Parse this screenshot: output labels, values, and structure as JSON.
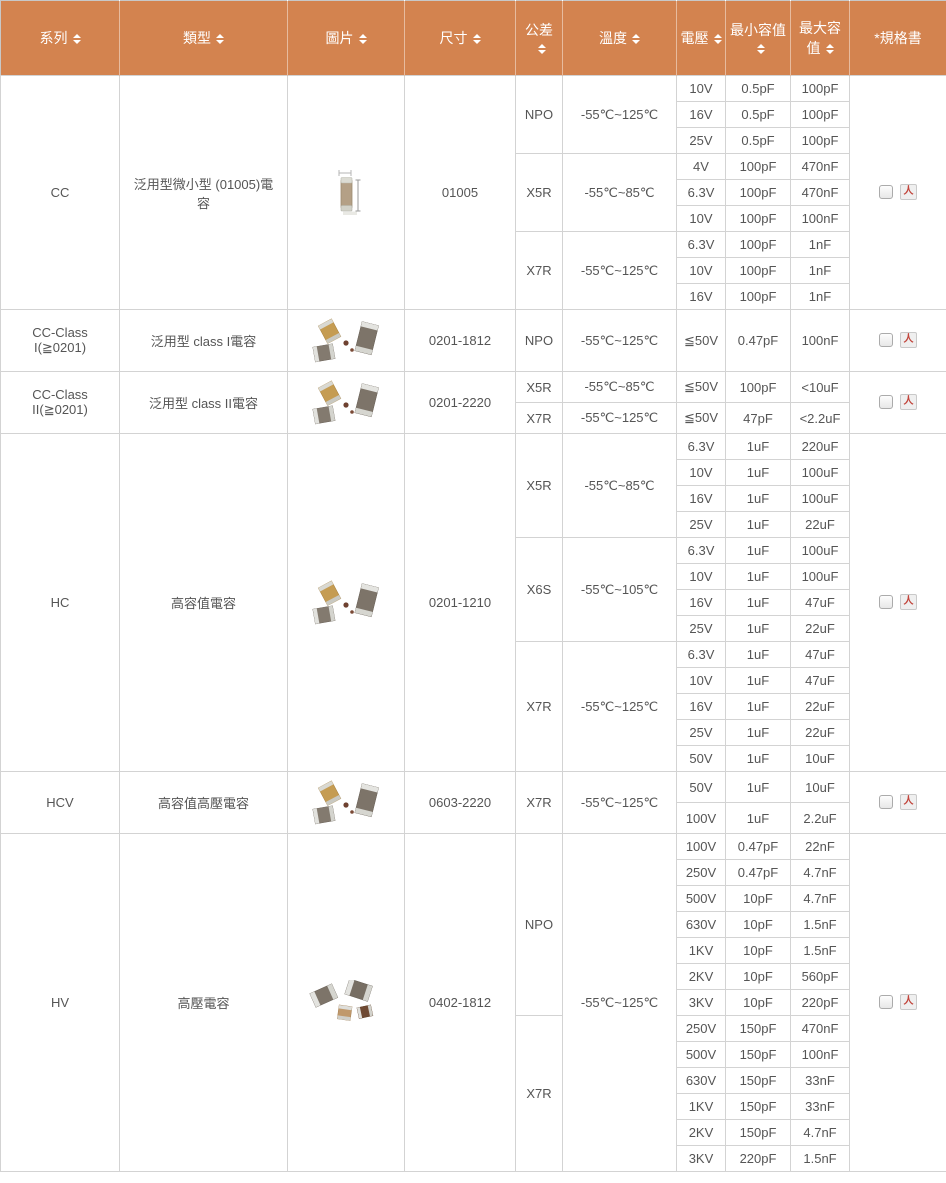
{
  "colors": {
    "header_bg": "#D3834F",
    "header_text": "#FFFFFF",
    "body_text": "#555555",
    "border": "#D3D3D3",
    "pdf_red": "#C2453C"
  },
  "header": {
    "columns": [
      {
        "key": "series",
        "label": "系列",
        "sortable": true
      },
      {
        "key": "type",
        "label": "類型",
        "sortable": true
      },
      {
        "key": "image",
        "label": "圖片",
        "sortable": true
      },
      {
        "key": "size",
        "label": "尺寸",
        "sortable": true
      },
      {
        "key": "tolerance",
        "label": "公差",
        "sortable": true
      },
      {
        "key": "temperature",
        "label": "溫度",
        "sortable": true
      },
      {
        "key": "voltage",
        "label": "電壓",
        "sortable": true
      },
      {
        "key": "min-capacitance",
        "label": "最小容值",
        "sortable": true
      },
      {
        "key": "max-capacitance",
        "label": "最大容值",
        "sortable": true
      },
      {
        "key": "spec-sheet",
        "label": "*規格書",
        "sortable": false
      }
    ]
  },
  "table": {
    "rows": [
      {
        "series": "CC",
        "type": "泛用型微小型 (01005)電容",
        "image_icon": "capacitor-photo-single",
        "size": "01005",
        "groups": [
          {
            "tolerance": "NPO",
            "temperature": "-55℃~125℃",
            "entries": [
              {
                "voltage": "10V",
                "min": "0.5pF",
                "max": "100pF"
              },
              {
                "voltage": "16V",
                "min": "0.5pF",
                "max": "100pF"
              },
              {
                "voltage": "25V",
                "min": "0.5pF",
                "max": "100pF"
              }
            ]
          },
          {
            "tolerance": "X5R",
            "temperature": "-55℃~85℃",
            "entries": [
              {
                "voltage": "4V",
                "min": "100pF",
                "max": "470nF"
              },
              {
                "voltage": "6.3V",
                "min": "100pF",
                "max": "470nF"
              },
              {
                "voltage": "10V",
                "min": "100pF",
                "max": "100nF"
              }
            ]
          },
          {
            "tolerance": "X7R",
            "temperature": "-55℃~125℃",
            "entries": [
              {
                "voltage": "6.3V",
                "min": "100pF",
                "max": "1nF"
              },
              {
                "voltage": "10V",
                "min": "100pF",
                "max": "1nF"
              },
              {
                "voltage": "16V",
                "min": "100pF",
                "max": "1nF"
              }
            ]
          }
        ],
        "spec": {
          "checkbox_checked": false,
          "pdf_icon": "pdf-download-icon"
        }
      },
      {
        "series": "CC-Class I(≧0201)",
        "type": "泛用型 class I電容",
        "image_icon": "capacitor-photo-cluster",
        "size": "0201-1812",
        "groups": [
          {
            "tolerance": "NPO",
            "temperature": "-55℃~125℃",
            "entries": [
              {
                "voltage": "≦50V",
                "min": "0.47pF",
                "max": "100nF"
              }
            ]
          }
        ],
        "spec": {
          "checkbox_checked": false,
          "pdf_icon": "pdf-download-icon"
        }
      },
      {
        "series": "CC-Class II(≧0201)",
        "type": "泛用型 class II電容",
        "image_icon": "capacitor-photo-cluster",
        "size": "0201-2220",
        "groups": [
          {
            "tolerance": "X5R",
            "temperature": "-55℃~85℃",
            "entries": [
              {
                "voltage": "≦50V",
                "min": "100pF",
                "max": "<10uF"
              }
            ]
          },
          {
            "tolerance": "X7R",
            "temperature": "-55℃~125℃",
            "entries": [
              {
                "voltage": "≦50V",
                "min": "47pF",
                "max": "<2.2uF"
              }
            ]
          }
        ],
        "spec": {
          "checkbox_checked": false,
          "pdf_icon": "pdf-download-icon"
        }
      },
      {
        "series": "HC",
        "type": "高容值電容",
        "image_icon": "capacitor-photo-cluster",
        "size": "0201-1210",
        "groups": [
          {
            "tolerance": "X5R",
            "temperature": "-55℃~85℃",
            "entries": [
              {
                "voltage": "6.3V",
                "min": "1uF",
                "max": "220uF"
              },
              {
                "voltage": "10V",
                "min": "1uF",
                "max": "100uF"
              },
              {
                "voltage": "16V",
                "min": "1uF",
                "max": "100uF"
              },
              {
                "voltage": "25V",
                "min": "1uF",
                "max": "22uF"
              }
            ]
          },
          {
            "tolerance": "X6S",
            "temperature": "-55℃~105℃",
            "entries": [
              {
                "voltage": "6.3V",
                "min": "1uF",
                "max": "100uF"
              },
              {
                "voltage": "10V",
                "min": "1uF",
                "max": "100uF"
              },
              {
                "voltage": "16V",
                "min": "1uF",
                "max": "47uF"
              },
              {
                "voltage": "25V",
                "min": "1uF",
                "max": "22uF"
              }
            ]
          },
          {
            "tolerance": "X7R",
            "temperature": "-55℃~125℃",
            "entries": [
              {
                "voltage": "6.3V",
                "min": "1uF",
                "max": "47uF"
              },
              {
                "voltage": "10V",
                "min": "1uF",
                "max": "47uF"
              },
              {
                "voltage": "16V",
                "min": "1uF",
                "max": "22uF"
              },
              {
                "voltage": "25V",
                "min": "1uF",
                "max": "22uF"
              },
              {
                "voltage": "50V",
                "min": "1uF",
                "max": "10uF"
              }
            ]
          }
        ],
        "spec": {
          "checkbox_checked": false,
          "pdf_icon": "pdf-download-icon"
        }
      },
      {
        "series": "HCV",
        "type": "高容值高壓電容",
        "image_icon": "capacitor-photo-cluster",
        "size": "0603-2220",
        "groups": [
          {
            "tolerance": "X7R",
            "temperature": "-55℃~125℃",
            "entries": [
              {
                "voltage": "50V",
                "min": "1uF",
                "max": "10uF"
              },
              {
                "voltage": "100V",
                "min": "1uF",
                "max": "2.2uF"
              }
            ]
          }
        ],
        "spec": {
          "checkbox_checked": false,
          "pdf_icon": "pdf-download-icon"
        }
      },
      {
        "series": "HV",
        "type": "高壓電容",
        "image_icon": "capacitor-photo-cluster4",
        "size": "0402-1812",
        "shared_temperature": "-55℃~125℃",
        "groups": [
          {
            "tolerance": "NPO",
            "temperature": null,
            "entries": [
              {
                "voltage": "100V",
                "min": "0.47pF",
                "max": "22nF"
              },
              {
                "voltage": "250V",
                "min": "0.47pF",
                "max": "4.7nF"
              },
              {
                "voltage": "500V",
                "min": "10pF",
                "max": "4.7nF"
              },
              {
                "voltage": "630V",
                "min": "10pF",
                "max": "1.5nF"
              },
              {
                "voltage": "1KV",
                "min": "10pF",
                "max": "1.5nF"
              },
              {
                "voltage": "2KV",
                "min": "10pF",
                "max": "560pF"
              },
              {
                "voltage": "3KV",
                "min": "10pF",
                "max": "220pF"
              }
            ]
          },
          {
            "tolerance": "X7R",
            "temperature": null,
            "entries": [
              {
                "voltage": "250V",
                "min": "150pF",
                "max": "470nF"
              },
              {
                "voltage": "500V",
                "min": "150pF",
                "max": "100nF"
              },
              {
                "voltage": "630V",
                "min": "150pF",
                "max": "33nF"
              },
              {
                "voltage": "1KV",
                "min": "150pF",
                "max": "33nF"
              },
              {
                "voltage": "2KV",
                "min": "150pF",
                "max": "4.7nF"
              },
              {
                "voltage": "3KV",
                "min": "220pF",
                "max": "1.5nF"
              }
            ]
          }
        ],
        "spec": {
          "checkbox_checked": false,
          "pdf_icon": "pdf-download-icon"
        }
      }
    ]
  }
}
